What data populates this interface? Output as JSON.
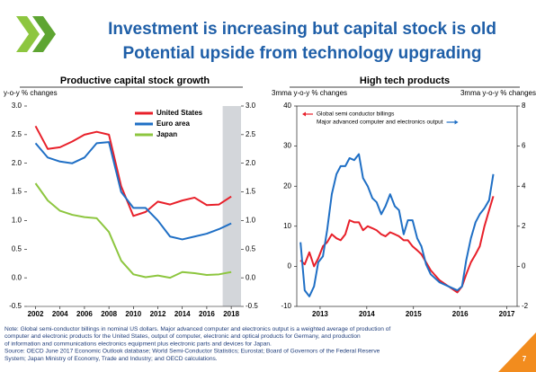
{
  "header": {
    "title_lines": [
      "Investment is increasing but capital stock is old",
      "Potential upside from technology upgrading"
    ]
  },
  "chart_data": [
    {
      "type": "line",
      "title": "Productive capital stock growth",
      "y_label": "y-o-y % changes",
      "x": [
        2002,
        2003,
        2004,
        2005,
        2006,
        2007,
        2008,
        2009,
        2010,
        2011,
        2012,
        2013,
        2014,
        2015,
        2016,
        2017,
        2018
      ],
      "xlim": [
        2001.3,
        2018.8
      ],
      "xticks": [
        2002,
        2004,
        2006,
        2008,
        2010,
        2012,
        2014,
        2016,
        2018
      ],
      "ylim": [
        -0.5,
        3.0
      ],
      "yticks": [
        {
          "value": -0.5,
          "label": "-0.5"
        },
        {
          "value": 0,
          "label": "0.0"
        },
        {
          "value": 0.5,
          "label": "0.5"
        },
        {
          "value": 1,
          "label": "1.0"
        },
        {
          "value": 1.5,
          "label": "1.5"
        },
        {
          "value": 2,
          "label": "2.0"
        },
        {
          "value": 2.5,
          "label": "2.5"
        },
        {
          "value": 3,
          "label": "3.0"
        }
      ],
      "y2lim": [
        -0.5,
        3.0
      ],
      "y2ticks": [
        {
          "value": -0.5,
          "label": "-0.5"
        },
        {
          "value": 0,
          "label": "0.0"
        },
        {
          "value": 0.5,
          "label": "0.5"
        },
        {
          "value": 1,
          "label": "1.0"
        },
        {
          "value": 1.5,
          "label": "1.5"
        },
        {
          "value": 2,
          "label": "2.0"
        },
        {
          "value": 2.5,
          "label": "2.5"
        },
        {
          "value": 3,
          "label": "3.0"
        }
      ],
      "shaded_xrange": [
        2017.3,
        2018.8
      ],
      "shade_color": "#d3d6da",
      "frame": false,
      "series": [
        {
          "name": "United States",
          "color": "#e8202a",
          "values": [
            2.65,
            2.25,
            2.28,
            2.38,
            2.5,
            2.55,
            2.5,
            1.6,
            1.08,
            1.15,
            1.33,
            1.28,
            1.35,
            1.4,
            1.27,
            1.28,
            1.42
          ]
        },
        {
          "name": "Euro area",
          "color": "#1f6fc5",
          "values": [
            2.35,
            2.1,
            2.03,
            2.0,
            2.1,
            2.35,
            2.37,
            1.5,
            1.22,
            1.22,
            1.0,
            0.72,
            0.67,
            0.72,
            0.77,
            0.85,
            0.95
          ]
        },
        {
          "name": "Japan",
          "color": "#8dc63f",
          "values": [
            1.65,
            1.35,
            1.17,
            1.1,
            1.06,
            1.04,
            0.8,
            0.3,
            0.06,
            0.01,
            0.04,
            0.0,
            0.1,
            0.08,
            0.05,
            0.06,
            0.1
          ]
        }
      ]
    },
    {
      "type": "line",
      "title": "High tech products",
      "y_label": "3mma y-o-y % changes",
      "y2_label": "3mma y-o-y % changes",
      "x": [
        2012.58,
        2012.67,
        2012.77,
        2012.87,
        2012.96,
        2013.06,
        2013.15,
        2013.25,
        2013.35,
        2013.44,
        2013.54,
        2013.63,
        2013.73,
        2013.83,
        2013.92,
        2014.02,
        2014.12,
        2014.21,
        2014.31,
        2014.4,
        2014.5,
        2014.6,
        2014.69,
        2014.79,
        2014.88,
        2014.98,
        2015.08,
        2015.17,
        2015.27,
        2015.37,
        2015.56,
        2015.75,
        2015.94,
        2016.04,
        2016.13,
        2016.23,
        2016.33,
        2016.42,
        2016.52,
        2016.62,
        2016.71
      ],
      "xlim": [
        2012.5,
        2017.22
      ],
      "xticks": [
        2013,
        2014,
        2015,
        2016,
        2017
      ],
      "ylim": [
        -10,
        40
      ],
      "yticks": [
        -10,
        0,
        10,
        20,
        30,
        40
      ],
      "y2lim": [
        -2,
        8
      ],
      "y2ticks": [
        -2,
        0,
        2,
        4,
        6,
        8
      ],
      "frame": true,
      "series": [
        {
          "name": "Global semi conductor billings",
          "color": "#e8202a",
          "axis": "y",
          "values": [
            1.5,
            0.5,
            3.5,
            0,
            2,
            5,
            6,
            8,
            7,
            6.5,
            8,
            11.5,
            11,
            11,
            9,
            10,
            9.5,
            9,
            8,
            7.5,
            8.5,
            8,
            7.5,
            6.5,
            6.5,
            5,
            4,
            3,
            1,
            -1,
            -3.5,
            -5,
            -6.5,
            -5,
            -2,
            1,
            3,
            5,
            10,
            14,
            17.5
          ]
        },
        {
          "name": "Major advanced computer and electronics output",
          "color": "#1f6fc5",
          "axis": "y2",
          "values": [
            1.2,
            -1.2,
            -1.5,
            -1.0,
            0.2,
            0.5,
            1.8,
            3.6,
            4.6,
            5.0,
            5.0,
            5.4,
            5.3,
            5.6,
            4.4,
            4.0,
            3.4,
            3.2,
            2.6,
            3.0,
            3.6,
            3.0,
            2.8,
            1.6,
            2.3,
            2.3,
            1.4,
            1.0,
            0.1,
            -0.4,
            -0.8,
            -1.0,
            -1.2,
            -1.0,
            0.3,
            1.4,
            2.2,
            2.6,
            2.9,
            3.3,
            4.6
          ]
        }
      ]
    }
  ],
  "note_lines": [
    "Note: Global semi-conductor billings in nominal US dollars. Major advanced computer and electronics output is a weighted average of production of",
    "computer and electronic products for the United States, output of computer, electronic and optical products for Germany, and production",
    "of information and communications electronics equipment plus electronic parts and devices for Japan.",
    "Source: OECD June 2017 Economic Outlook database; World Semi-Conductor Statistics; Eurostat; Board of Governors of the Federal Reserve",
    "System; Japan Ministry of Economy, Trade and Industry; and OECD calculations."
  ],
  "page_number": "7"
}
